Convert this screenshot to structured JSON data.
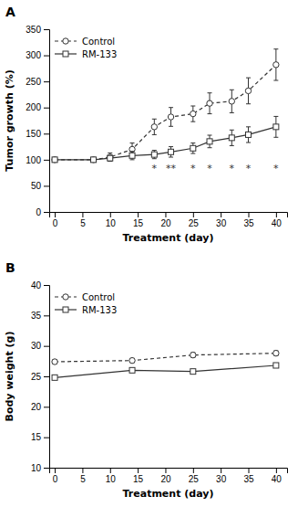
{
  "chart_data": [
    {
      "type": "line",
      "title": "A",
      "xlabel": "Treatment (day)",
      "ylabel": "Tumor growth (%)",
      "xlim": [
        -1,
        42
      ],
      "ylim": [
        0,
        350
      ],
      "xticks": [
        0,
        5,
        10,
        15,
        20,
        25,
        30,
        35,
        40
      ],
      "yticks": [
        0,
        50,
        100,
        150,
        200,
        250,
        300,
        350
      ],
      "legend": "upper left",
      "x": [
        0,
        7,
        10,
        14,
        18,
        21,
        25,
        28,
        32,
        35,
        40
      ],
      "series": [
        {
          "name": "Control",
          "color": "#333333",
          "marker": "circle",
          "line_style": "dashed",
          "values": [
            100,
            100,
            105,
            120,
            163,
            182,
            188,
            208,
            212,
            232,
            282
          ],
          "errors": [
            3,
            3,
            8,
            12,
            15,
            18,
            15,
            20,
            22,
            25,
            30
          ]
        },
        {
          "name": "RM-133",
          "color": "#333333",
          "marker": "square",
          "line_style": "solid",
          "values": [
            100,
            100,
            103,
            108,
            110,
            115,
            122,
            135,
            142,
            148,
            163
          ],
          "errors": [
            3,
            3,
            5,
            8,
            8,
            10,
            10,
            12,
            15,
            15,
            20
          ]
        }
      ],
      "annotations": [
        {
          "x": 18,
          "y": 83,
          "text": "*"
        },
        {
          "x": 21,
          "y": 83,
          "text": "**"
        },
        {
          "x": 25,
          "y": 83,
          "text": "*"
        },
        {
          "x": 28,
          "y": 83,
          "text": "*"
        },
        {
          "x": 32,
          "y": 83,
          "text": "*"
        },
        {
          "x": 35,
          "y": 83,
          "text": "*"
        },
        {
          "x": 40,
          "y": 83,
          "text": "*"
        }
      ]
    },
    {
      "type": "line",
      "title": "B",
      "xlabel": "Treatment (day)",
      "ylabel": "Body weight (g)",
      "xlim": [
        -1,
        42
      ],
      "ylim": [
        10,
        40
      ],
      "xticks": [
        0,
        5,
        10,
        15,
        20,
        25,
        30,
        35,
        40
      ],
      "yticks": [
        10,
        15,
        20,
        25,
        30,
        35,
        40
      ],
      "legend": "upper left",
      "x": [
        0,
        14,
        25,
        40
      ],
      "series": [
        {
          "name": "Control",
          "color": "#333333",
          "marker": "circle",
          "line_style": "dashed",
          "values": [
            27.4,
            27.6,
            28.5,
            28.8
          ],
          "errors": [
            0.35,
            0.35,
            0.4,
            0.4
          ]
        },
        {
          "name": "RM-133",
          "color": "#333333",
          "marker": "square",
          "line_style": "solid",
          "values": [
            24.8,
            26.0,
            25.8,
            26.8
          ],
          "errors": [
            0.3,
            0.3,
            0.3,
            0.35
          ]
        }
      ]
    }
  ]
}
